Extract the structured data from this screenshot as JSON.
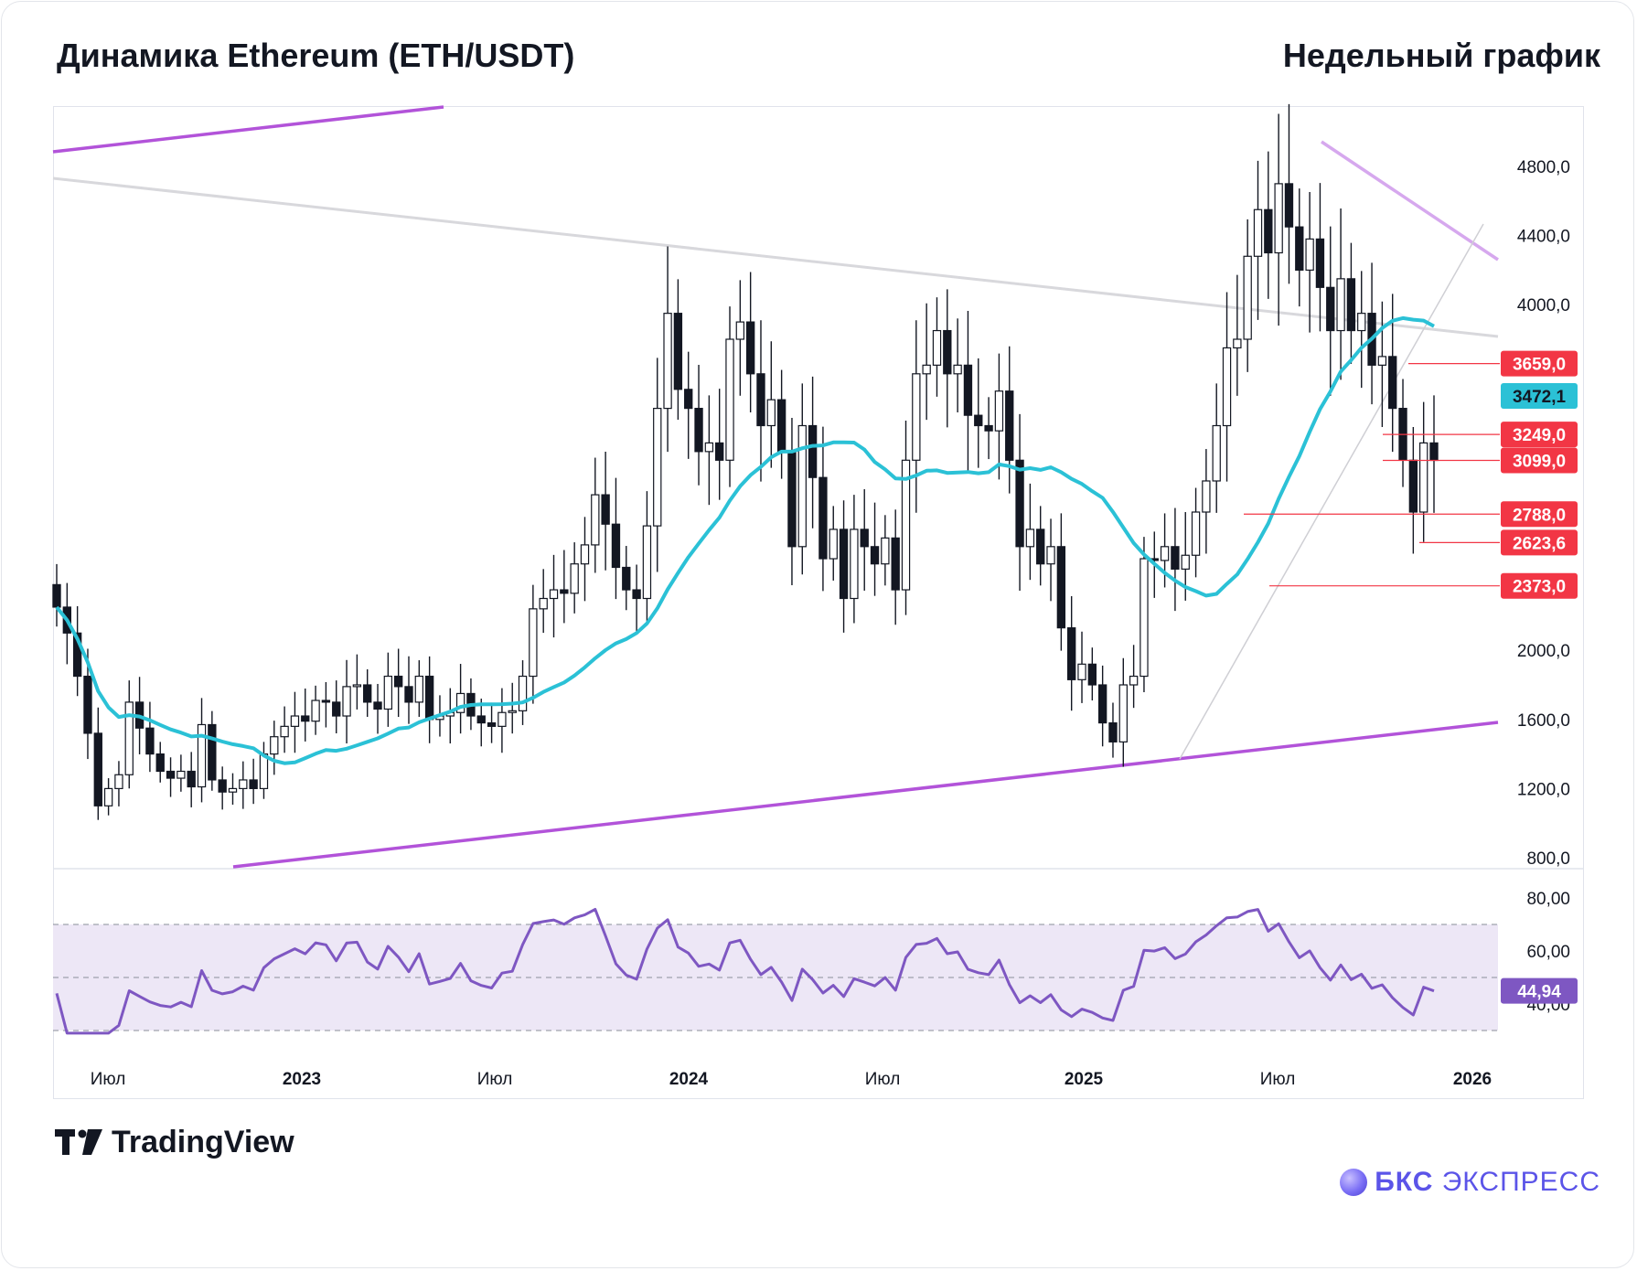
{
  "header": {
    "title": "Динамика Ethereum (ETH/USDT)",
    "subtitle": "Недельный график"
  },
  "footer": {
    "platform": "TradingView",
    "brand_bold": "БКС",
    "brand_light": "ЭКСПРЕСС"
  },
  "chart_data": [
    {
      "type": "candlestick",
      "title": "",
      "ylim": [
        800,
        5000
      ],
      "y_scale": "linear",
      "y_ticks": [
        "800,0",
        "1200,0",
        "1600,0",
        "2000,0",
        "4000,0",
        "4400,0",
        "4800,0"
      ],
      "x_ticks": [
        "Июл",
        "2023",
        "Июл",
        "2024",
        "Июл",
        "2025",
        "Июл",
        "2026"
      ],
      "closes": [
        2250,
        2100,
        1850,
        1520,
        1100,
        1200,
        1280,
        1700,
        1550,
        1400,
        1300,
        1260,
        1300,
        1210,
        1570,
        1250,
        1180,
        1200,
        1250,
        1200,
        1400,
        1500,
        1560,
        1620,
        1590,
        1710,
        1700,
        1620,
        1790,
        1800,
        1700,
        1660,
        1850,
        1790,
        1700,
        1850,
        1600,
        1620,
        1640,
        1750,
        1620,
        1580,
        1560,
        1640,
        1650,
        1850,
        2240,
        2300,
        2350,
        2330,
        2500,
        2610,
        2900,
        2730,
        2480,
        2350,
        2300,
        2720,
        3400,
        3950,
        3510,
        3400,
        3150,
        3200,
        3100,
        3800,
        3900,
        3600,
        3300,
        3450,
        3150,
        2600,
        3300,
        3000,
        2530,
        2700,
        2300,
        2700,
        2600,
        2500,
        2650,
        2350,
        3100,
        3600,
        3650,
        3850,
        3600,
        3650,
        3360,
        3300,
        3270,
        3500,
        3100,
        2600,
        2700,
        2500,
        2600,
        2130,
        1830,
        1920,
        1800,
        1580,
        1470,
        1800,
        1850,
        2530,
        2520,
        2600,
        2470,
        2550,
        2800,
        2980,
        3300,
        3750,
        3800,
        4280,
        4550,
        4300,
        4700,
        4450,
        4200,
        4380,
        4100,
        3850,
        4150,
        3850,
        3950,
        3650,
        3700,
        3400,
        3100,
        2800,
        3200,
        3099
      ],
      "annotations": {
        "level_labels": [
          "3659,0",
          "3249,0",
          "3099,0",
          "2788,0",
          "2623,6",
          "2373,0"
        ],
        "level_values": [
          3659,
          3249,
          3099,
          2788,
          2623.6,
          2373
        ],
        "ma_label": "3472,1",
        "ma_value": 3472.1
      },
      "colors": {
        "up": "#131722",
        "down": "#131722",
        "ma": "#2bc1d6",
        "channel": "#b253d9",
        "levels": "#f23645",
        "trend": "#d6a8ee"
      }
    },
    {
      "type": "line",
      "title": "",
      "ylim": [
        30,
        85
      ],
      "y_ticks": [
        "80,00",
        "60,00",
        "40,00"
      ],
      "overbought": 70,
      "oversold": 30,
      "last_value_label": "44,94",
      "last_value": 44.94,
      "colors": {
        "line": "#7e57c2",
        "band": "#ede7f6"
      }
    }
  ]
}
